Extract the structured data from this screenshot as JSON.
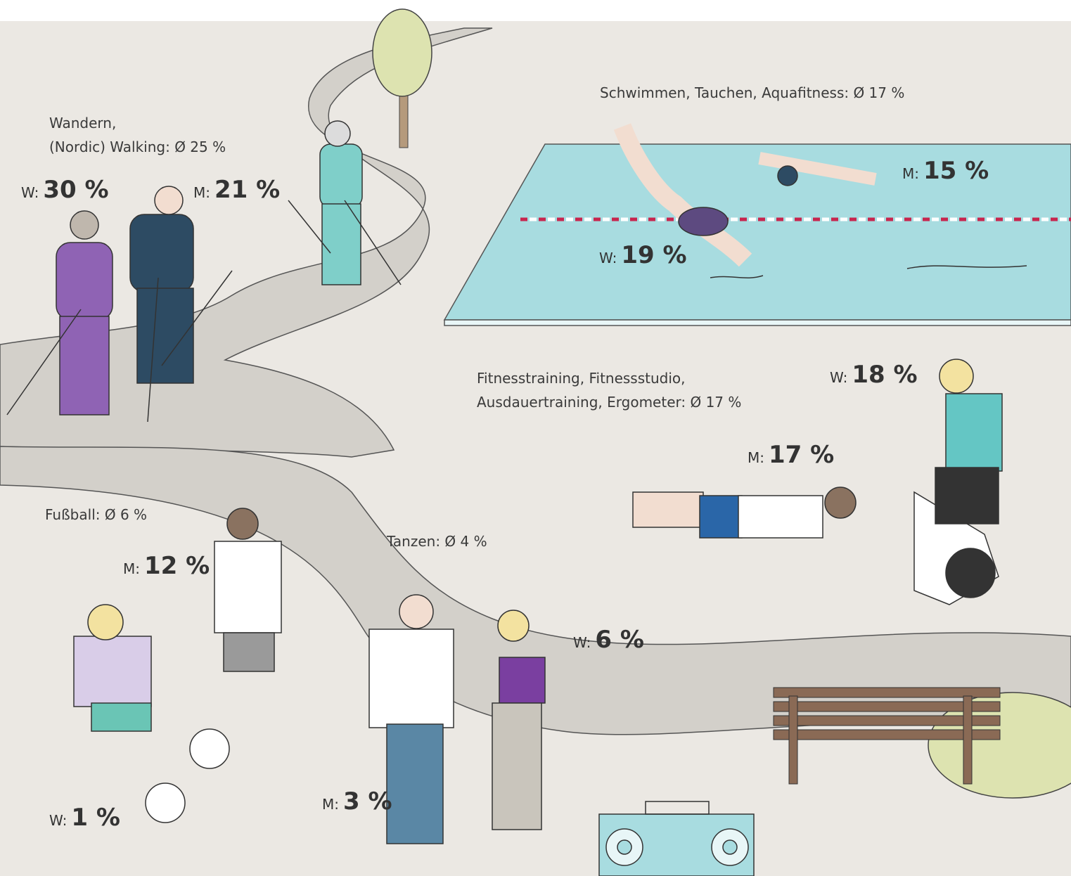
{
  "groups": [
    {
      "label": [
        "Wandern,",
        "(Nordic) Walking: Ø 25 %"
      ],
      "women": {
        "prefix": "W:",
        "value": "30 %"
      },
      "men": {
        "prefix": "M:",
        "value": "21 %"
      }
    },
    {
      "label": [
        "Schwimmen, Tauchen, Aquafitness: Ø 17 %"
      ],
      "men": {
        "prefix": "M:",
        "value": "15 %"
      },
      "women": {
        "prefix": "W:",
        "value": "19 %"
      }
    },
    {
      "label": [
        "Fitnesstraining, Fitnessstudio,",
        "Ausdauertraining, Ergometer: Ø 17 %"
      ],
      "women": {
        "prefix": "W:",
        "value": "18 %"
      },
      "men": {
        "prefix": "M:",
        "value": "17 %"
      }
    },
    {
      "label": [
        "Fußball: Ø 6 %"
      ],
      "men": {
        "prefix": "M:",
        "value": "12 %"
      },
      "women": {
        "prefix": "W:",
        "value": "1 %"
      }
    },
    {
      "label": [
        "Tanzen: Ø 4 %"
      ],
      "women": {
        "prefix": "W:",
        "value": "6 %"
      },
      "men": {
        "prefix": "M:",
        "value": "3 %"
      }
    }
  ]
}
